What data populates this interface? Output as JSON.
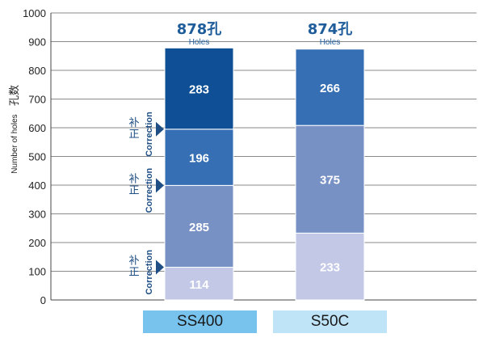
{
  "chart_data": {
    "type": "bar",
    "stacked": true,
    "categories": [
      "SS400",
      "S50C"
    ],
    "ylabel_en": "Number of holes",
    "ylabel_cn": "孔数",
    "ylim": [
      0,
      1000
    ],
    "yticks": [
      0,
      100,
      200,
      300,
      400,
      500,
      600,
      700,
      800,
      900,
      1000
    ],
    "grid": true,
    "stacks": [
      {
        "category": "SS400",
        "segments": [
          114,
          285,
          196,
          283
        ],
        "segment_labels": [
          "114",
          "285",
          "196",
          "283"
        ],
        "colors": [
          "#c3c8e6",
          "#7891c4",
          "#366fb3",
          "#0e4f95"
        ],
        "total_value": "878孔",
        "total_sub": "Holes",
        "total_value_color": "#1f5c9a"
      },
      {
        "category": "S50C",
        "segments": [
          233,
          375,
          266
        ],
        "segment_labels": [
          "233",
          "375",
          "266"
        ],
        "colors": [
          "#c3c8e6",
          "#7891c4",
          "#366fb3"
        ],
        "total_value": "874孔",
        "total_sub": "Holes",
        "total_value_color": "#1f5c9a"
      }
    ],
    "annotations": [
      {
        "cn": "补正",
        "en": "Correction",
        "at": 114
      },
      {
        "cn": "补正",
        "en": "Correction",
        "at": 399
      },
      {
        "cn": "补正",
        "en": "Correction",
        "at": 595
      }
    ],
    "category_box_colors": [
      "#77c3ee",
      "#bfe3f7"
    ],
    "label_color": "#ffffff"
  }
}
